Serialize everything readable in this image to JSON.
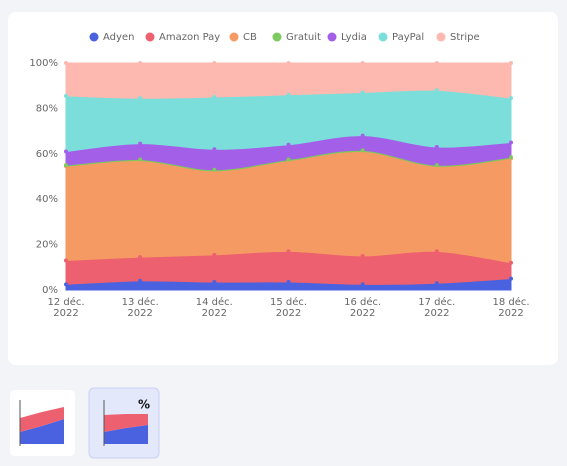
{
  "chart_data": {
    "type": "stacked_area",
    "categories": [
      "12 déc. 2022",
      "13 déc. 2022",
      "14 déc. 2022",
      "15 déc. 2022",
      "16 déc. 2022",
      "17 déc. 2022",
      "18 déc. 2022"
    ],
    "series": [
      {
        "name": "Adyen",
        "color": "#4a62e0",
        "values": [
          2.5,
          4,
          3.5,
          3.5,
          2.5,
          3,
          5
        ]
      },
      {
        "name": "Amazon Pay",
        "color": "#ec606f",
        "values": [
          10.5,
          10.5,
          12,
          13.5,
          12.5,
          14,
          7
        ]
      },
      {
        "name": "CB",
        "color": "#f69a63",
        "values": [
          41.5,
          42.5,
          37,
          40,
          46,
          37.5,
          46
        ]
      },
      {
        "name": "Gratuit",
        "color": "#7cc95e",
        "values": [
          0.5,
          0.5,
          0.5,
          0.5,
          0.5,
          0.5,
          0.5
        ]
      },
      {
        "name": "Lydia",
        "color": "#a45fe8",
        "values": [
          6,
          7,
          9,
          6.5,
          6.5,
          8,
          6.5
        ]
      },
      {
        "name": "PayPal",
        "color": "#7bdedb",
        "values": [
          24.5,
          20,
          23,
          22,
          19,
          25,
          19.5
        ]
      },
      {
        "name": "Stripe",
        "color": "#fdb9af",
        "values": [
          14.5,
          15.5,
          15,
          14,
          13,
          12,
          15.5
        ]
      }
    ],
    "ylim": [
      0,
      100
    ],
    "yticks": [
      {
        "value": 0,
        "label": "0%"
      },
      {
        "value": 20,
        "label": "20%"
      },
      {
        "value": 40,
        "label": "40%"
      },
      {
        "value": 60,
        "label": "60%"
      },
      {
        "value": 80,
        "label": "80%"
      },
      {
        "value": 100,
        "label": "100%"
      }
    ],
    "grid": false,
    "legend": "top"
  },
  "toolbar": {
    "percent_icon": "%"
  }
}
